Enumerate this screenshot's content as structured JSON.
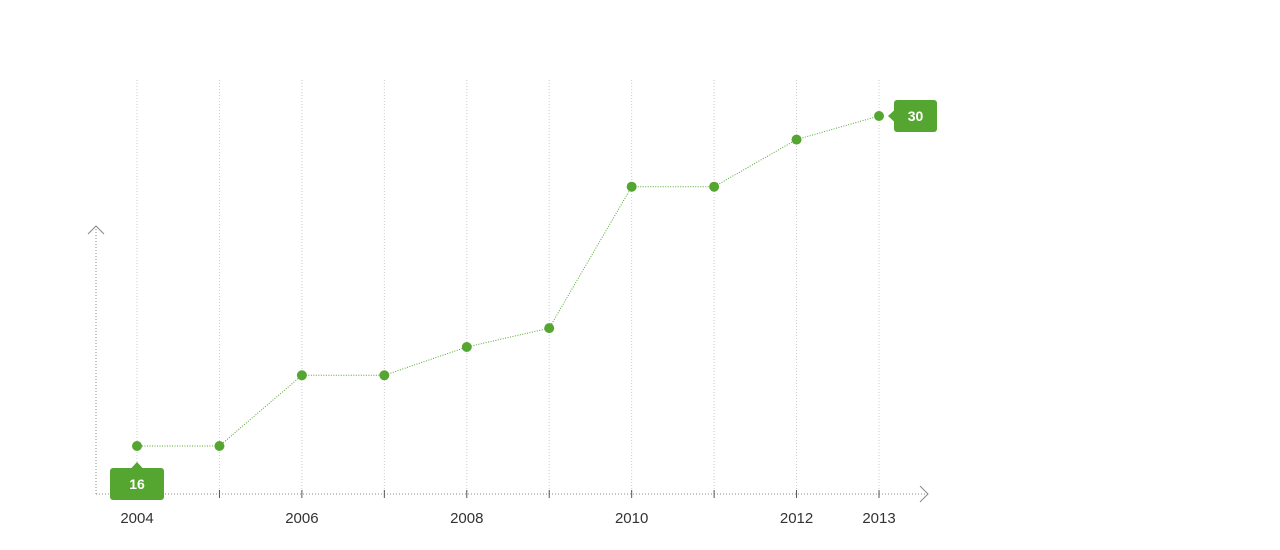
{
  "chart_data": {
    "type": "line",
    "title": "",
    "xlabel": "",
    "ylabel": "",
    "x": [
      2004,
      2005,
      2006,
      2007,
      2008,
      2009,
      2010,
      2011,
      2012,
      2013
    ],
    "values": [
      16,
      16,
      19,
      19,
      20.2,
      21,
      27,
      27,
      29,
      30
    ],
    "x_tick_labels": [
      "2004",
      "",
      "2006",
      "",
      "2008",
      "",
      "2010",
      "",
      "2012",
      "2013"
    ],
    "annotations": [
      {
        "x": 2004,
        "value": 16,
        "label": "16",
        "placement": "below"
      },
      {
        "x": 2013,
        "value": 30,
        "label": "30",
        "placement": "right"
      }
    ],
    "ylim": [
      11,
      35
    ],
    "grid": "vertical dotted",
    "legend": "none",
    "colors": {
      "series": "#55a630",
      "callout": "#55a630",
      "axis": "#888888",
      "grid": "#cccccc",
      "text": "#333333"
    }
  }
}
